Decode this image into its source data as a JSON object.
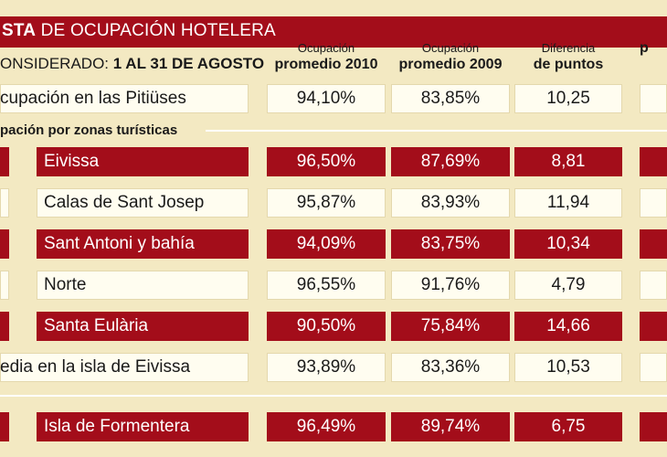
{
  "title": {
    "bold": "STA",
    "rest": " DE OCUPACIÓN HOTELERA"
  },
  "period": {
    "label": "ONSIDERADO:",
    "value": " 1 AL 31 DE AGOSTO"
  },
  "columns": [
    {
      "small": "Ocupación",
      "big": "promedio 2010"
    },
    {
      "small": "Ocupación",
      "big": "promedio 2009"
    },
    {
      "small": "Diferencia",
      "big": "de puntos"
    },
    {
      "small": "",
      "big": "p"
    }
  ],
  "summary_row": {
    "label": "cupación en las Pitiüses",
    "v2010": "94,10%",
    "v2009": "83,85%",
    "diff": "10,25"
  },
  "section_title": "pación por zonas turísticas",
  "zones": [
    {
      "label": "Eivissa",
      "v2010": "96,50%",
      "v2009": "87,69%",
      "diff": "8,81",
      "style": "red"
    },
    {
      "label": "Calas de Sant Josep",
      "v2010": "95,87%",
      "v2009": "83,93%",
      "diff": "11,94",
      "style": "white"
    },
    {
      "label": "Sant Antoni y bahía",
      "v2010": "94,09%",
      "v2009": "83,75%",
      "diff": "10,34",
      "style": "red"
    },
    {
      "label": "Norte",
      "v2010": "96,55%",
      "v2009": "91,76%",
      "diff": "4,79",
      "style": "white"
    },
    {
      "label": "Santa Eulària",
      "v2010": "90,50%",
      "v2009": "75,84%",
      "diff": "14,66",
      "style": "red"
    }
  ],
  "media_row": {
    "label": "edia en la isla de Eivissa",
    "v2010": "93,89%",
    "v2009": "83,36%",
    "diff": "10,53"
  },
  "formentera_row": {
    "label": "Isla de Formentera",
    "v2010": "96,49%",
    "v2009": "89,74%",
    "diff": "6,75"
  },
  "colors": {
    "red": "#a30d1a",
    "background": "#f3e9c2",
    "cell": "#fffdf0"
  }
}
